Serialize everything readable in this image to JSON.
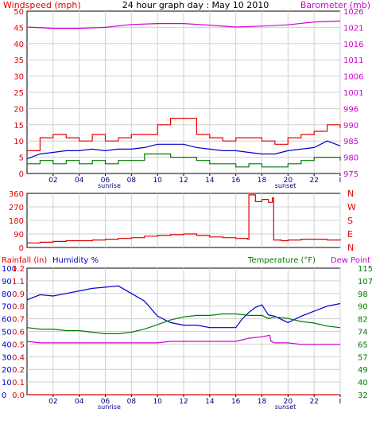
{
  "colors": {
    "wind_axis": "#e00000",
    "baro_axis": "#d000d0",
    "gust": "#ee0000",
    "avg": "#0000cc",
    "low": "#007a00",
    "baro": "#d000d0",
    "winddir": "#dd0000",
    "rain": "#dd0000",
    "humidity": "#0000cc",
    "temperature": "#007a00",
    "dewpoint": "#d000d0",
    "grid": "#d0d0d0",
    "frame": "#000000"
  },
  "chart_data": [
    {
      "type": "line",
      "title": "24 hour graph day : May 10 2010",
      "left_axis_label": "Windspeed (mph)",
      "right_axis_label": "Barometer (mb)",
      "x_ticks": [
        "02",
        "04",
        "06",
        "08",
        "10",
        "12",
        "14",
        "16",
        "18",
        "20",
        "22",
        "I"
      ],
      "x_markers": [
        "sunrise",
        "sunset"
      ],
      "ylim_left": [
        0,
        50
      ],
      "yticks_left": [
        "0",
        "5",
        "10",
        "15",
        "20",
        "25",
        "30",
        "35",
        "40",
        "45",
        "50"
      ],
      "ylim_right": [
        975,
        1026
      ],
      "yticks_right": [
        "975",
        "980",
        "985",
        "990",
        "996",
        "1001",
        "1006",
        "1011",
        "1016",
        "1021",
        "1026"
      ],
      "grid": true,
      "series": [
        {
          "key": "gust",
          "axis": "left",
          "style": "step",
          "x": [
            0,
            1,
            2,
            3,
            4,
            5,
            6,
            7,
            8,
            9,
            10,
            11,
            12,
            13,
            14,
            15,
            16,
            17,
            18,
            19,
            20,
            21,
            22,
            23,
            24
          ],
          "values": [
            7,
            11,
            12,
            11,
            10,
            12,
            10,
            11,
            12,
            12,
            15,
            17,
            17,
            12,
            11,
            10,
            11,
            11,
            10,
            9,
            11,
            12,
            13,
            15,
            14
          ]
        },
        {
          "key": "avg",
          "axis": "left",
          "style": "line",
          "x": [
            0,
            1,
            2,
            3,
            4,
            5,
            6,
            7,
            8,
            9,
            10,
            11,
            12,
            13,
            14,
            15,
            16,
            17,
            18,
            19,
            20,
            21,
            22,
            23,
            24
          ],
          "values": [
            4.5,
            6,
            6.5,
            7,
            7,
            7.5,
            7,
            7.5,
            7.5,
            8,
            9,
            9,
            9,
            8,
            7.5,
            7,
            7,
            6.5,
            6,
            6,
            7,
            7.5,
            8,
            10,
            8.5
          ]
        },
        {
          "key": "low",
          "axis": "left",
          "style": "step",
          "x": [
            0,
            1,
            2,
            3,
            4,
            5,
            6,
            7,
            8,
            9,
            10,
            11,
            12,
            13,
            14,
            15,
            16,
            17,
            18,
            19,
            20,
            21,
            22,
            23,
            24
          ],
          "values": [
            3,
            4,
            3,
            4,
            3,
            4,
            3,
            4,
            4,
            6,
            6,
            5,
            5,
            4,
            3,
            3,
            2,
            3,
            2,
            2,
            3,
            4,
            5,
            5,
            4
          ]
        },
        {
          "key": "baro",
          "axis": "right",
          "style": "line",
          "x": [
            0,
            2,
            4,
            6,
            8,
            10,
            12,
            14,
            16,
            18,
            20,
            22,
            24
          ],
          "values": [
            1021,
            1020.6,
            1020.6,
            1020.9,
            1021.8,
            1022.1,
            1022.1,
            1021.6,
            1021.0,
            1021.3,
            1021.7,
            1022.6,
            1022.9
          ]
        }
      ]
    },
    {
      "type": "line",
      "title": "",
      "right_axis_labels": [
        "N",
        "W",
        "S",
        "E",
        "N"
      ],
      "ylim_left": [
        0,
        360
      ],
      "yticks_left": [
        "0",
        "90",
        "180",
        "270",
        "360"
      ],
      "grid": true,
      "series": [
        {
          "key": "winddir",
          "axis": "left",
          "style": "step",
          "x": [
            0,
            1,
            2,
            3,
            4,
            5,
            6,
            7,
            8,
            9,
            10,
            11,
            12,
            13,
            14,
            15,
            16,
            16.9,
            17.0,
            17.5,
            18,
            18.5,
            18.8,
            18.9,
            19.5,
            20,
            21,
            22,
            23,
            24
          ],
          "values": [
            30,
            35,
            40,
            45,
            45,
            50,
            55,
            60,
            65,
            75,
            80,
            85,
            90,
            80,
            70,
            65,
            60,
            55,
            350,
            305,
            320,
            300,
            330,
            50,
            45,
            50,
            55,
            55,
            50,
            55
          ]
        }
      ]
    },
    {
      "type": "line",
      "title": "",
      "axis_labels": [
        "Rainfall (in)",
        "Humidity %",
        "Temperature (°F)",
        "Dew Point"
      ],
      "ylim_rain": [
        0,
        1.2
      ],
      "yticks_rain": [
        "0.0",
        "0.1",
        "0.2",
        "0.4",
        "0.5",
        "0.6",
        "0.7",
        "0.8",
        "0.9",
        "1.1",
        "1.2"
      ],
      "ylim_humidity": [
        0,
        100
      ],
      "yticks_humidity": [
        "0",
        "10",
        "20",
        "30",
        "40",
        "50",
        "60",
        "70",
        "80",
        "90",
        "100"
      ],
      "ylim_temperature": [
        32,
        115
      ],
      "yticks_temperature": [
        "32",
        "40",
        "49",
        "57",
        "65",
        "74",
        "82",
        "90",
        "98",
        "107",
        "115"
      ],
      "grid": true,
      "series": [
        {
          "key": "humidity",
          "axis": "humidity",
          "style": "line",
          "x": [
            0,
            1,
            2,
            3,
            4,
            5,
            6,
            7,
            8,
            9,
            10,
            11,
            12,
            13,
            14,
            15,
            16,
            16.5,
            17,
            17.5,
            18,
            18.5,
            19,
            20,
            21,
            22,
            23,
            24
          ],
          "values": [
            75,
            79,
            78,
            80,
            82,
            84,
            85,
            86,
            80,
            74,
            62,
            57,
            55,
            55,
            53,
            53,
            53,
            60,
            65,
            69,
            71,
            63,
            62,
            57,
            62,
            66,
            70,
            72
          ]
        },
        {
          "key": "temperature",
          "axis": "temperature",
          "style": "line",
          "x": [
            0,
            1,
            2,
            3,
            4,
            5,
            6,
            7,
            8,
            9,
            10,
            11,
            12,
            13,
            14,
            15,
            16,
            17,
            18,
            18.5,
            19,
            20,
            21,
            22,
            23,
            24
          ],
          "values": [
            76,
            75,
            75,
            74,
            74,
            73,
            72,
            72,
            73,
            75,
            78,
            81,
            83,
            84,
            84,
            85,
            85,
            84,
            84,
            82,
            83,
            82,
            80,
            79,
            77,
            76
          ]
        },
        {
          "key": "dewpoint",
          "axis": "temperature",
          "style": "line",
          "x": [
            0,
            1,
            2,
            3,
            4,
            5,
            6,
            7,
            8,
            9,
            10,
            11,
            12,
            13,
            14,
            15,
            16,
            16.5,
            17,
            18,
            18.6,
            18.7,
            19,
            20,
            21,
            22,
            23,
            24
          ],
          "values": [
            67,
            66,
            66,
            66,
            66,
            66,
            66,
            66,
            66,
            66,
            66,
            67,
            67,
            67,
            67,
            67,
            67,
            68,
            69,
            70,
            71,
            67,
            66,
            66,
            65,
            65,
            65,
            65
          ]
        },
        {
          "key": "rain",
          "axis": "rain",
          "style": "line",
          "x": [
            0,
            24
          ],
          "values": [
            0,
            0
          ]
        }
      ]
    }
  ]
}
